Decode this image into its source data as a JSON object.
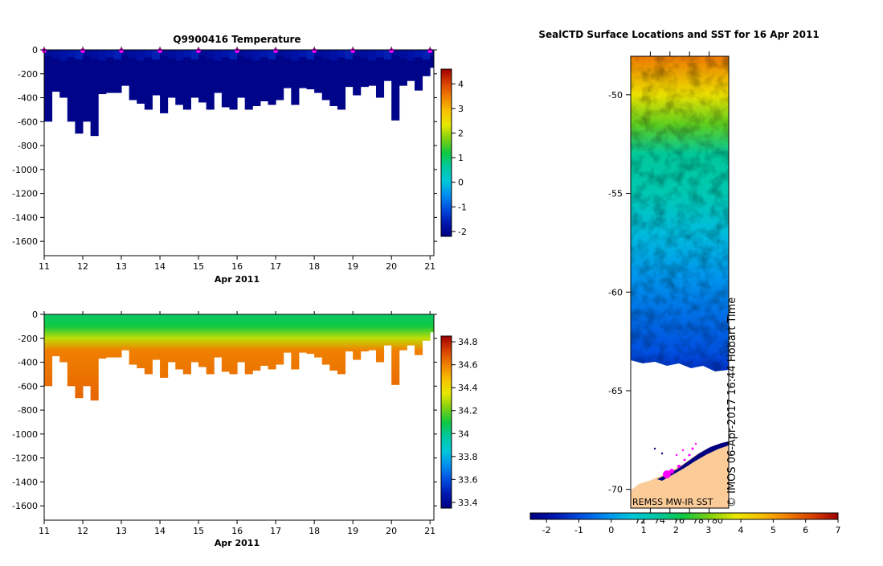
{
  "colors": {
    "cmap": [
      "#000080",
      "#0018b0",
      "#0050e0",
      "#0090f0",
      "#00c8d8",
      "#00c8a0",
      "#10c840",
      "#80d010",
      "#e8e800",
      "#f8c000",
      "#f08000",
      "#d84000",
      "#a00000"
    ],
    "land": "#fbcb98",
    "track": "#ff00ff",
    "ice": "#000080"
  },
  "chart_data": [
    {
      "type": "heatmap",
      "title": "Q9900416  Temperature",
      "xlabel": "Apr 2011",
      "ylabel": "",
      "xlim": [
        11,
        21.1
      ],
      "ylim": [
        -1720,
        0
      ],
      "xticks": [
        "11",
        "12",
        "13",
        "14",
        "15",
        "16",
        "17",
        "18",
        "19",
        "20",
        "21"
      ],
      "yticks": [
        "0",
        "-200",
        "-400",
        "-600",
        "-800",
        "-1000",
        "-1200",
        "-1400",
        "-1600"
      ],
      "colorbar": {
        "range": [
          -2.2,
          4.6
        ],
        "ticks": [
          "-2",
          "-1",
          "0",
          "1",
          "2",
          "3",
          "4"
        ]
      },
      "profile_times": [
        11.0,
        11.2,
        11.4,
        11.6,
        11.8,
        12.0,
        12.2,
        12.4,
        12.6,
        12.8,
        13.0,
        13.2,
        13.4,
        13.6,
        13.8,
        14.0,
        14.2,
        14.4,
        14.6,
        14.8,
        15.0,
        15.2,
        15.4,
        15.6,
        15.8,
        16.0,
        16.2,
        16.4,
        16.6,
        16.8,
        17.0,
        17.2,
        17.4,
        17.6,
        17.8,
        18.0,
        18.2,
        18.4,
        18.6,
        18.8,
        19.0,
        19.2,
        19.4,
        19.6,
        19.8,
        20.0,
        20.2,
        20.4,
        20.6,
        20.8,
        21.0
      ],
      "max_depths": [
        -600,
        -350,
        -400,
        -600,
        -700,
        -600,
        -720,
        -370,
        -360,
        -360,
        -300,
        -420,
        -450,
        -500,
        -380,
        -530,
        -400,
        -460,
        -500,
        -400,
        -440,
        -500,
        -360,
        -480,
        -500,
        -400,
        -500,
        -470,
        -430,
        -460,
        -420,
        -320,
        -460,
        -320,
        -330,
        -360,
        -420,
        -470,
        -500,
        -310,
        -380,
        -310,
        -300,
        -400,
        -260,
        -590,
        -300,
        -260,
        -340,
        -220,
        -150
      ],
      "surface_values": [
        -1.9,
        -1.8,
        -1.7,
        -1.6,
        -1.5
      ],
      "mixed_layer_depth": -150,
      "surface_markers": [
        11,
        12,
        13,
        14,
        15,
        16,
        17,
        18,
        19,
        20,
        21
      ]
    },
    {
      "type": "heatmap",
      "title": "",
      "xlabel": "Apr 2011",
      "ylabel": "",
      "xlim": [
        11,
        21.1
      ],
      "ylim": [
        -1720,
        0
      ],
      "xticks": [
        "11",
        "12",
        "13",
        "14",
        "15",
        "16",
        "17",
        "18",
        "19",
        "20",
        "21"
      ],
      "yticks": [
        "0",
        "-200",
        "-400",
        "-600",
        "-800",
        "-1000",
        "-1200",
        "-1400",
        "-1600"
      ],
      "colorbar": {
        "range": [
          33.35,
          34.85
        ],
        "ticks": [
          "33.4",
          "33.6",
          "33.8",
          "34",
          "34.2",
          "34.4",
          "34.6",
          "34.8"
        ]
      },
      "value_layers": [
        {
          "depth": 0,
          "value": 34.05
        },
        {
          "depth": -100,
          "value": 34.1
        },
        {
          "depth": -200,
          "value": 34.3
        },
        {
          "depth": -300,
          "value": 34.6
        },
        {
          "depth": -700,
          "value": 34.65
        }
      ]
    },
    {
      "type": "heatmap",
      "title": "SealCTD Surface Locations and SST for 16 Apr 2011",
      "xlabel": "",
      "ylabel": "",
      "ylim": [
        -70.95,
        -48.05
      ],
      "yticks": [
        "-50",
        "-55",
        "-60",
        "-65",
        "-70"
      ],
      "lon_ticks": [
        "72",
        "74",
        "76",
        "78",
        "80"
      ],
      "colorbar": {
        "range": [
          -2.5,
          7.0
        ],
        "ticks": [
          "-2",
          "-1",
          "0",
          "1",
          "2",
          "3",
          "4",
          "5",
          "6",
          "7"
        ]
      },
      "sst_by_latitude": [
        {
          "lat": -48,
          "value": 5.5
        },
        {
          "lat": -50,
          "value": 4.0
        },
        {
          "lat": -51.5,
          "value": 2.8
        },
        {
          "lat": -53,
          "value": 1.5
        },
        {
          "lat": -55,
          "value": 1.2
        },
        {
          "lat": -57,
          "value": 0.5
        },
        {
          "lat": -59,
          "value": 0.0
        },
        {
          "lat": -61,
          "value": -0.5
        },
        {
          "lat": -63,
          "value": -0.9
        },
        {
          "lat": -64,
          "value": -1.4
        }
      ],
      "ice_edge_lat": -64.0,
      "credit": "REMSS MW-IR SST",
      "watermark": "© IMOS 06-Apr-2017 16:44 Hobart Time"
    }
  ]
}
